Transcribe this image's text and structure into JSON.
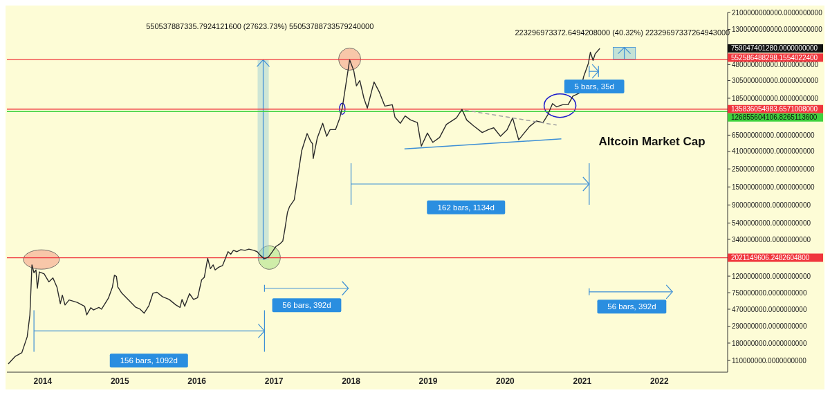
{
  "chart_data": {
    "type": "line",
    "title": "Altcoin Market Cap",
    "log": "y",
    "marker": "none",
    "line_style": "solid",
    "xlim": [
      2013.535,
      2022.886
    ],
    "xticks": [
      2014,
      2015,
      2016,
      2017,
      2018,
      2019,
      2020,
      2021,
      2022
    ],
    "ylim": [
      79000000,
      2100000000000
    ],
    "yticks": [
      {
        "value": 2100000000000,
        "label": "2100000000000.0000000000"
      },
      {
        "value": 1300000000000,
        "label": "1300000000000.0000000000"
      },
      {
        "value": 480000000000,
        "label": "480000000000.0000000000"
      },
      {
        "value": 305000000000,
        "label": "305000000000.0000000000"
      },
      {
        "value": 185000000000,
        "label": "185000000000.0000000000"
      },
      {
        "value": 65000000000,
        "label": "65000000000.0000000000"
      },
      {
        "value": 41000000000,
        "label": "41000000000.0000000000"
      },
      {
        "value": 25000000000,
        "label": "25000000000.0000000000"
      },
      {
        "value": 15000000000,
        "label": "15000000000.0000000000"
      },
      {
        "value": 9000000000,
        "label": "9000000000.0000000000"
      },
      {
        "value": 5400000000,
        "label": "5400000000.0000000000"
      },
      {
        "value": 3400000000,
        "label": "3400000000.0000000000"
      },
      {
        "value": 1200000000,
        "label": "1200000000.0000000000"
      },
      {
        "value": 750000000,
        "label": "750000000.0000000000"
      },
      {
        "value": 470000000,
        "label": "470000000.0000000000"
      },
      {
        "value": 290000000,
        "label": "290000000.0000000000"
      },
      {
        "value": 180000000,
        "label": "180000000.0000000000"
      },
      {
        "value": 110000000,
        "label": "110000000.0000000000"
      }
    ],
    "series": [
      {
        "color": "#2b2b2b",
        "x": [
          2013.553,
          2013.64,
          2013.728,
          2013.798,
          2013.833,
          2013.86,
          2013.886,
          2013.912,
          2013.93,
          2013.956,
          2014.018,
          2014.079,
          2014.132,
          2014.184,
          2014.228,
          2014.254,
          2014.289,
          2014.342,
          2014.447,
          2014.544,
          2014.57,
          2014.623,
          2014.658,
          2014.728,
          2014.763,
          2014.851,
          2014.904,
          2014.93,
          2014.956,
          2014.974,
          2015.026,
          2015.114,
          2015.202,
          2015.263,
          2015.316,
          2015.377,
          2015.43,
          2015.482,
          2015.553,
          2015.64,
          2015.728,
          2015.781,
          2015.807,
          2015.842,
          2015.904,
          2015.956,
          2016.009,
          2016.061,
          2016.096,
          2016.14,
          2016.175,
          2016.211,
          2016.237,
          2016.281,
          2016.333,
          2016.368,
          2016.404,
          2016.439,
          2016.474,
          2016.518,
          2016.57,
          2016.623,
          2016.675,
          2016.737,
          2016.781,
          2016.825,
          2016.877,
          2016.93,
          2016.974,
          2017.026,
          2017.079,
          2017.114,
          2017.14,
          2017.175,
          2017.202,
          2017.263,
          2017.325,
          2017.36,
          2017.43,
          2017.474,
          2017.5,
          2017.509,
          2017.561,
          2017.632,
          2017.684,
          2017.728,
          2017.798,
          2017.851,
          2017.886,
          2017.93,
          2017.982,
          2018.035,
          2018.07,
          2018.114,
          2018.167,
          2018.211,
          2018.298,
          2018.368,
          2018.439,
          2018.535,
          2018.57,
          2018.64,
          2018.702,
          2018.772,
          2018.86,
          2018.912,
          2018.991,
          2019.061,
          2019.149,
          2019.237,
          2019.368,
          2019.439,
          2019.5,
          2019.588,
          2019.702,
          2019.781,
          2019.851,
          2019.939,
          2020.026,
          2020.096,
          2020.175,
          2020.246,
          2020.316,
          2020.404,
          2020.491,
          2020.553,
          2020.614,
          2020.667,
          2020.746,
          2020.816,
          2020.877,
          2020.965,
          2021.018,
          2021.079,
          2021.105,
          2021.14,
          2021.167,
          2021.228
        ],
        "values": [
          100000000.0,
          123000000.0,
          137000000.0,
          215000000.0,
          400000000.0,
          1650000000.0,
          1320000000.0,
          1430000000.0,
          850000000.0,
          1350000000.0,
          1280000000.0,
          1020000000.0,
          1140000000.0,
          880000000.0,
          550000000.0,
          700000000.0,
          530000000.0,
          610000000.0,
          570000000.0,
          510000000.0,
          400000000.0,
          490000000.0,
          460000000.0,
          495000000.0,
          470000000.0,
          640000000.0,
          880000000.0,
          1230000000.0,
          1190000000.0,
          880000000.0,
          740000000.0,
          610000000.0,
          500000000.0,
          470000000.0,
          420000000.0,
          520000000.0,
          740000000.0,
          760000000.0,
          670000000.0,
          620000000.0,
          530000000.0,
          495000000.0,
          620000000.0,
          510000000.0,
          730000000.0,
          620000000.0,
          650000000.0,
          1080000000.0,
          1160000000.0,
          1990000000.0,
          1480000000.0,
          1650000000.0,
          1430000000.0,
          1540000000.0,
          1620000000.0,
          1960000000.0,
          2400000000.0,
          2230000000.0,
          2490000000.0,
          2400000000.0,
          2540000000.0,
          2490000000.0,
          2580000000.0,
          2490000000.0,
          2400000000.0,
          2150000000.0,
          1960000000.0,
          2070000000.0,
          2360000000.0,
          2780000000.0,
          3000000000.0,
          3230000000.0,
          4430000000.0,
          7300000000.0,
          8600000000.0,
          10400000000.0,
          25400000000.0,
          41900000000.0,
          68000000000.0,
          55000000000.0,
          51000000000.0,
          33500000000.0,
          59600000000.0,
          91000000000.0,
          63000000000.0,
          76000000000.0,
          76000000000.0,
          104000000000.0,
          140000000000.0,
          263000000000.0,
          550000000000.0,
          404000000000.0,
          263000000000.0,
          305000000000.0,
          185000000000.0,
          140000000000.0,
          294000000000.0,
          219000000000.0,
          148000000000.0,
          154000000000.0,
          108000000000.0,
          91000000000.0,
          112000000000.0,
          100000000000.0,
          93000000000.0,
          47700000000.0,
          69000000000.0,
          53000000000.0,
          61000000000.0,
          88000000000.0,
          106000000000.0,
          135000000000.0,
          100000000000.0,
          85000000000.0,
          70000000000.0,
          76000000000.0,
          80000000000.0,
          63000000000.0,
          76000000000.0,
          106000000000.0,
          57000000000.0,
          69000000000.0,
          83000000000.0,
          97000000000.0,
          93000000000.0,
          116000000000.0,
          159000000000.0,
          145000000000.0,
          154000000000.0,
          154000000000.0,
          196000000000.0,
          215000000000.0,
          341000000000.0,
          495000000000.0,
          680000000000.0,
          540000000000.0,
          650000000000.0,
          759047401280
        ]
      },
      {
        "color": "#3d8fd6",
        "x": [
          2018.693,
          2020.728
        ],
        "values": [
          44000000000.0,
          58500000000.0
        ]
      },
      {
        "color": "#a0a0a0",
        "line_style": "dashed",
        "x": [
          2019.474,
          2020.667
        ],
        "values": [
          132000000000.0,
          86500000000.0
        ]
      }
    ],
    "ref_lines": [
      {
        "axis": "y",
        "value": 552586488298.1554,
        "label": "552586488298.1554022400",
        "color": "#f0363d"
      },
      {
        "axis": "y",
        "value": 135836054983.6571,
        "label": "135836054983.6571008000",
        "color": "#f0363d"
      },
      {
        "axis": "y",
        "value": 126855604106.8265,
        "label": "126855604106.8265113600",
        "color": "#3ed13e"
      },
      {
        "axis": "y",
        "value": 2021149606.2482605,
        "label": "2021149606.2482604800",
        "color": "#f0363d"
      }
    ],
    "annotations": [
      "550537887335.7924121600 (27623.73%) 55053788733579240000",
      "223296973372.6494208000 (40.32%) 22329697337264943000",
      "156 bars, 1092d",
      "56 bars, 392d",
      "162 bars, 1134d",
      "5 bars, 35d",
      "56 bars, 392d",
      "759047401280.0000000000"
    ]
  }
}
